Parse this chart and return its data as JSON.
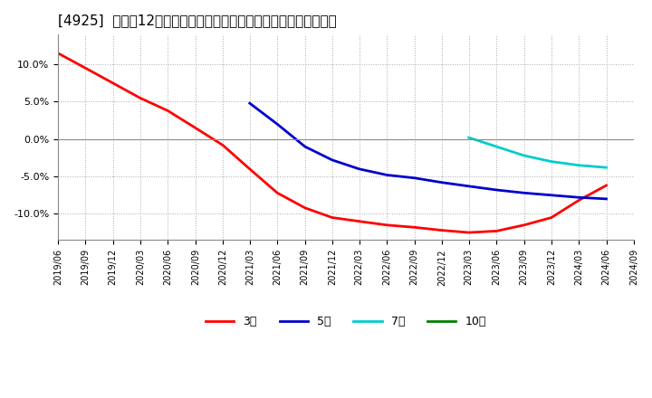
{
  "title": "[4925]  売上高12か月移動合計の対前年同期増減率の平均値の推移",
  "title_fontsize": 11,
  "background_color": "#ffffff",
  "plot_bg_color": "#ffffff",
  "grid_color": "#aaaaaa",
  "ylim": [
    -0.135,
    0.14
  ],
  "yticks": [
    -0.1,
    -0.05,
    0.0,
    0.05,
    0.1
  ],
  "series": {
    "3年": {
      "color": "#ff0000",
      "x": [
        "2019-06",
        "2019-09",
        "2019-12",
        "2020-03",
        "2020-06",
        "2020-09",
        "2020-12",
        "2021-03",
        "2021-06",
        "2021-09",
        "2021-12",
        "2022-03",
        "2022-06",
        "2022-09",
        "2022-12",
        "2023-03",
        "2023-06",
        "2023-09",
        "2023-12",
        "2024-03",
        "2024-06"
      ],
      "y": [
        0.115,
        0.095,
        0.075,
        0.055,
        0.038,
        0.015,
        -0.008,
        -0.04,
        -0.072,
        -0.092,
        -0.105,
        -0.11,
        -0.115,
        -0.118,
        -0.122,
        -0.125,
        -0.123,
        -0.115,
        -0.105,
        -0.082,
        -0.062
      ]
    },
    "5年": {
      "color": "#0000cc",
      "x": [
        "2021-03",
        "2021-06",
        "2021-09",
        "2021-12",
        "2022-03",
        "2022-06",
        "2022-09",
        "2022-12",
        "2023-03",
        "2023-06",
        "2023-09",
        "2023-12",
        "2024-03",
        "2024-06"
      ],
      "y": [
        0.048,
        0.02,
        -0.01,
        -0.028,
        -0.04,
        -0.048,
        -0.052,
        -0.058,
        -0.063,
        -0.068,
        -0.072,
        -0.075,
        -0.078,
        -0.08
      ]
    },
    "7年": {
      "color": "#00cccc",
      "x": [
        "2023-03",
        "2023-06",
        "2023-09",
        "2023-12",
        "2024-03",
        "2024-06"
      ],
      "y": [
        0.002,
        -0.01,
        -0.022,
        -0.03,
        -0.035,
        -0.038
      ]
    },
    "10年": {
      "color": "#008000",
      "x": [],
      "y": []
    }
  },
  "legend_labels": [
    "3年",
    "5年",
    "7年",
    "10年"
  ],
  "legend_colors": [
    "#ff0000",
    "#0000cc",
    "#00cccc",
    "#008000"
  ]
}
